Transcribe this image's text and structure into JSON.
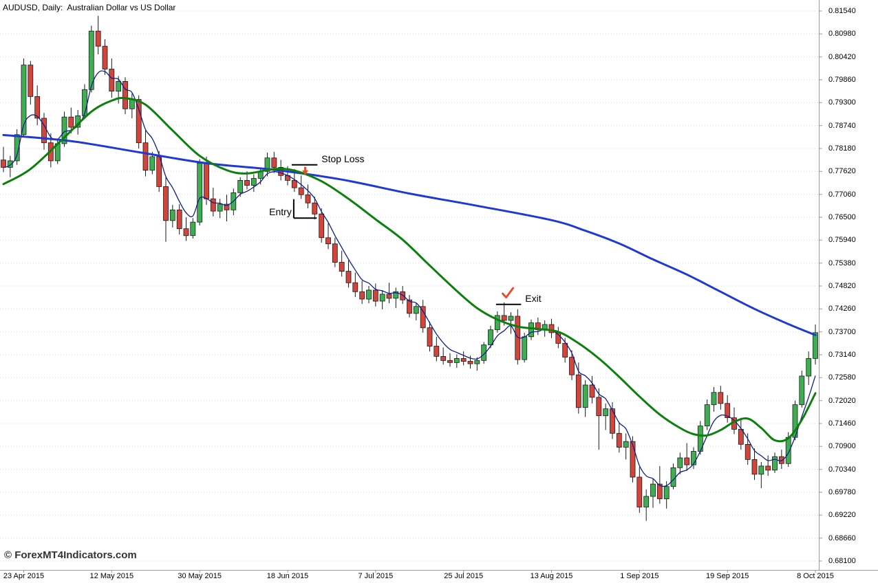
{
  "window": {
    "title": "AUDUSD, Daily:  Australian Dollar vs US Dollar"
  },
  "watermark_text": "© ForexMT4Indicators.com",
  "chart_data": {
    "type": "candlestick",
    "symbol": "AUDUSD",
    "timeframe": "Daily",
    "description": "Australian Dollar vs US Dollar",
    "colors": {
      "background": "#ffffff",
      "grid": "#d6d6d6",
      "up_candle": "#3fae53",
      "down_candle": "#d1453c",
      "candle_outline": "#1a1a1a",
      "slow_ma": "#1f39d4",
      "medium_ma": "#0b800b",
      "fast_ma": "#0e1e8e",
      "annotation_line": "#000000",
      "marker": "#e2512e",
      "axis_line": "#9a9a9a",
      "axis_text": "#000000"
    },
    "y_axis": {
      "min": 0.681,
      "max": 0.8154,
      "tick_step": 0.0056,
      "labels": [
        "0.81540",
        "0.80980",
        "0.80420",
        "0.79860",
        "0.79300",
        "0.78740",
        "0.78180",
        "0.77620",
        "0.77060",
        "0.76500",
        "0.75940",
        "0.75380",
        "0.74820",
        "0.74260",
        "0.73700",
        "0.73140",
        "0.72580",
        "0.72020",
        "0.71460",
        "0.70900",
        "0.70340",
        "0.69780",
        "0.69220",
        "0.68660",
        "0.68100"
      ]
    },
    "x_axis": {
      "tick_indices": [
        3,
        16,
        29,
        42,
        55,
        68,
        81,
        94,
        107,
        120
      ],
      "labels": [
        "23 Apr 2015",
        "12 May 2015",
        "30 May 2015",
        "18 Jun 2015",
        "7 Jul 2015",
        "25 Jul 2015",
        "13 Aug 2015",
        "1 Sep 2015",
        "19 Sep 2015",
        "8 Oct 2015"
      ]
    },
    "candles": [
      [
        0.779,
        0.7822,
        0.776,
        0.7772
      ],
      [
        0.7772,
        0.78,
        0.7748,
        0.7788
      ],
      [
        0.7788,
        0.7865,
        0.7778,
        0.7852
      ],
      [
        0.7852,
        0.8038,
        0.7845,
        0.8022
      ],
      [
        0.8022,
        0.8032,
        0.7925,
        0.7945
      ],
      [
        0.7945,
        0.7972,
        0.7875,
        0.7892
      ],
      [
        0.7892,
        0.7905,
        0.7815,
        0.7832
      ],
      [
        0.7832,
        0.7855,
        0.7772,
        0.7788
      ],
      [
        0.7788,
        0.7842,
        0.778,
        0.783
      ],
      [
        0.783,
        0.7908,
        0.7822,
        0.7895
      ],
      [
        0.7895,
        0.7918,
        0.7855,
        0.787
      ],
      [
        0.787,
        0.7912,
        0.7852,
        0.7898
      ],
      [
        0.7898,
        0.7975,
        0.789,
        0.7962
      ],
      [
        0.7962,
        0.8118,
        0.7955,
        0.8105
      ],
      [
        0.8105,
        0.8142,
        0.8048,
        0.8068
      ],
      [
        0.8068,
        0.8085,
        0.7998,
        0.8012
      ],
      [
        0.8012,
        0.8038,
        0.7942,
        0.7958
      ],
      [
        0.7958,
        0.7995,
        0.7928,
        0.7982
      ],
      [
        0.7982,
        0.7992,
        0.7902,
        0.7915
      ],
      [
        0.7915,
        0.7952,
        0.7892,
        0.7938
      ],
      [
        0.7938,
        0.7948,
        0.7818,
        0.7832
      ],
      [
        0.7832,
        0.7862,
        0.775,
        0.7765
      ],
      [
        0.7765,
        0.781,
        0.7755,
        0.7798
      ],
      [
        0.7798,
        0.7812,
        0.7712,
        0.7725
      ],
      [
        0.7725,
        0.7748,
        0.759,
        0.7642
      ],
      [
        0.7642,
        0.768,
        0.7625,
        0.7668
      ],
      [
        0.7668,
        0.7682,
        0.7608,
        0.7622
      ],
      [
        0.7622,
        0.765,
        0.7592,
        0.7605
      ],
      [
        0.7605,
        0.7648,
        0.7598,
        0.7638
      ],
      [
        0.7638,
        0.7792,
        0.763,
        0.7782
      ],
      [
        0.7782,
        0.7798,
        0.768,
        0.7695
      ],
      [
        0.7695,
        0.7722,
        0.7652,
        0.7665
      ],
      [
        0.7665,
        0.7695,
        0.7648,
        0.7682
      ],
      [
        0.7682,
        0.7705,
        0.764,
        0.7668
      ],
      [
        0.7668,
        0.772,
        0.7655,
        0.771
      ],
      [
        0.771,
        0.7748,
        0.77,
        0.774
      ],
      [
        0.774,
        0.7762,
        0.7718,
        0.7728
      ],
      [
        0.7728,
        0.7755,
        0.7712,
        0.7745
      ],
      [
        0.7745,
        0.7772,
        0.773,
        0.7762
      ],
      [
        0.7762,
        0.7808,
        0.775,
        0.7795
      ],
      [
        0.7795,
        0.781,
        0.7758,
        0.7772
      ],
      [
        0.7772,
        0.779,
        0.774,
        0.7752
      ],
      [
        0.7752,
        0.7775,
        0.7728,
        0.774
      ],
      [
        0.774,
        0.7768,
        0.7712,
        0.7722
      ],
      [
        0.7722,
        0.7752,
        0.7695,
        0.7705
      ],
      [
        0.7705,
        0.773,
        0.7672,
        0.7685
      ],
      [
        0.7685,
        0.77,
        0.7645,
        0.7658
      ],
      [
        0.7658,
        0.7672,
        0.7588,
        0.76
      ],
      [
        0.76,
        0.7635,
        0.7572,
        0.7585
      ],
      [
        0.7585,
        0.76,
        0.7528,
        0.754
      ],
      [
        0.754,
        0.7568,
        0.7505,
        0.7518
      ],
      [
        0.7518,
        0.7545,
        0.7478,
        0.749
      ],
      [
        0.749,
        0.7515,
        0.7455,
        0.7468
      ],
      [
        0.7468,
        0.7495,
        0.7438,
        0.745
      ],
      [
        0.745,
        0.7482,
        0.744,
        0.7472
      ],
      [
        0.7472,
        0.7488,
        0.7432,
        0.7445
      ],
      [
        0.7445,
        0.7472,
        0.7425,
        0.7462
      ],
      [
        0.7462,
        0.749,
        0.744,
        0.7452
      ],
      [
        0.7452,
        0.7478,
        0.7428,
        0.7468
      ],
      [
        0.7468,
        0.7482,
        0.7438,
        0.7448
      ],
      [
        0.7448,
        0.746,
        0.7405,
        0.7415
      ],
      [
        0.7415,
        0.7442,
        0.7398,
        0.7432
      ],
      [
        0.7432,
        0.7448,
        0.7368,
        0.738
      ],
      [
        0.738,
        0.7395,
        0.7322,
        0.7335
      ],
      [
        0.7335,
        0.7358,
        0.7298,
        0.731
      ],
      [
        0.731,
        0.7332,
        0.729,
        0.73
      ],
      [
        0.73,
        0.7318,
        0.7285,
        0.7295
      ],
      [
        0.7295,
        0.7315,
        0.7282,
        0.7305
      ],
      [
        0.7305,
        0.7322,
        0.7288,
        0.7298
      ],
      [
        0.7298,
        0.7312,
        0.728,
        0.7292
      ],
      [
        0.7292,
        0.7308,
        0.7275,
        0.73
      ],
      [
        0.73,
        0.7345,
        0.7292,
        0.7338
      ],
      [
        0.7338,
        0.7385,
        0.733,
        0.7375
      ],
      [
        0.7375,
        0.742,
        0.7368,
        0.741
      ],
      [
        0.741,
        0.7442,
        0.7385,
        0.7398
      ],
      [
        0.7398,
        0.7418,
        0.7365,
        0.7408
      ],
      [
        0.7408,
        0.7425,
        0.729,
        0.7302
      ],
      [
        0.7302,
        0.7368,
        0.7295,
        0.7358
      ],
      [
        0.7358,
        0.74,
        0.735,
        0.7392
      ],
      [
        0.7392,
        0.7405,
        0.7362,
        0.7375
      ],
      [
        0.7375,
        0.7398,
        0.7358,
        0.7388
      ],
      [
        0.7388,
        0.7402,
        0.7355,
        0.7368
      ],
      [
        0.7368,
        0.7382,
        0.733,
        0.7342
      ],
      [
        0.7342,
        0.7355,
        0.7295,
        0.7308
      ],
      [
        0.7308,
        0.7325,
        0.7252,
        0.7265
      ],
      [
        0.7265,
        0.7295,
        0.717,
        0.7185
      ],
      [
        0.7185,
        0.7252,
        0.7162,
        0.724
      ],
      [
        0.724,
        0.7262,
        0.7195,
        0.721
      ],
      [
        0.721,
        0.7232,
        0.7082,
        0.7165
      ],
      [
        0.7165,
        0.7195,
        0.713,
        0.7182
      ],
      [
        0.7182,
        0.7198,
        0.7108,
        0.7122
      ],
      [
        0.7122,
        0.7148,
        0.7075,
        0.7088
      ],
      [
        0.7088,
        0.7122,
        0.7058,
        0.7102
      ],
      [
        0.7102,
        0.7115,
        0.7002,
        0.7015
      ],
      [
        0.7015,
        0.704,
        0.6928,
        0.6942
      ],
      [
        0.6942,
        0.6985,
        0.6908,
        0.6968
      ],
      [
        0.6968,
        0.701,
        0.694,
        0.6998
      ],
      [
        0.6998,
        0.7042,
        0.695,
        0.6962
      ],
      [
        0.6962,
        0.7005,
        0.6938,
        0.6992
      ],
      [
        0.6992,
        0.7048,
        0.6985,
        0.7038
      ],
      [
        0.7038,
        0.7075,
        0.7022,
        0.7062
      ],
      [
        0.7062,
        0.7098,
        0.703,
        0.7045
      ],
      [
        0.7045,
        0.7088,
        0.7035,
        0.7078
      ],
      [
        0.7078,
        0.7152,
        0.707,
        0.714
      ],
      [
        0.714,
        0.7205,
        0.713,
        0.7192
      ],
      [
        0.7192,
        0.7235,
        0.7175,
        0.7222
      ],
      [
        0.7222,
        0.7238,
        0.718,
        0.7195
      ],
      [
        0.7195,
        0.7215,
        0.7148,
        0.716
      ],
      [
        0.716,
        0.7185,
        0.712,
        0.7132
      ],
      [
        0.7132,
        0.716,
        0.7082,
        0.7095
      ],
      [
        0.7095,
        0.7122,
        0.7045,
        0.7058
      ],
      [
        0.7058,
        0.7085,
        0.7008,
        0.7022
      ],
      [
        0.7022,
        0.7052,
        0.6988,
        0.7042
      ],
      [
        0.7042,
        0.7068,
        0.7018,
        0.7032
      ],
      [
        0.7032,
        0.7075,
        0.7025,
        0.7065
      ],
      [
        0.7065,
        0.7082,
        0.7035,
        0.7048
      ],
      [
        0.7048,
        0.7125,
        0.704,
        0.7112
      ],
      [
        0.7112,
        0.7202,
        0.7105,
        0.7192
      ],
      [
        0.7192,
        0.7275,
        0.7185,
        0.7262
      ],
      [
        0.7262,
        0.7322,
        0.724,
        0.7305
      ],
      [
        0.7305,
        0.7388,
        0.729,
        0.7368
      ]
    ],
    "overlays": {
      "slow_ma": {
        "name": "slow-moving-average",
        "points": [
          [
            0,
            0.7851
          ],
          [
            10,
            0.7836
          ],
          [
            20,
            0.7809
          ],
          [
            30,
            0.7782
          ],
          [
            40,
            0.7766
          ],
          [
            50,
            0.7742
          ],
          [
            60,
            0.7708
          ],
          [
            70,
            0.7678
          ],
          [
            81,
            0.7643
          ],
          [
            86,
            0.7617
          ],
          [
            91,
            0.7586
          ],
          [
            96,
            0.7547
          ],
          [
            101,
            0.751
          ],
          [
            106,
            0.7468
          ],
          [
            111,
            0.7426
          ],
          [
            116,
            0.7389
          ],
          [
            120,
            0.7362
          ]
        ]
      },
      "medium_ma": {
        "name": "medium-moving-average",
        "points": [
          [
            0,
            0.7731
          ],
          [
            4,
            0.7768
          ],
          [
            9,
            0.7845
          ],
          [
            13,
            0.7908
          ],
          [
            16,
            0.7935
          ],
          [
            18,
            0.7941
          ],
          [
            21,
            0.7925
          ],
          [
            25,
            0.7862
          ],
          [
            29,
            0.78
          ],
          [
            33,
            0.7765
          ],
          [
            36,
            0.7757
          ],
          [
            40,
            0.7768
          ],
          [
            43,
            0.7764
          ],
          [
            47,
            0.7738
          ],
          [
            51,
            0.7695
          ],
          [
            55,
            0.7645
          ],
          [
            59,
            0.7595
          ],
          [
            63,
            0.7532
          ],
          [
            67,
            0.747
          ],
          [
            70,
            0.7428
          ],
          [
            73,
            0.74
          ],
          [
            76,
            0.7383
          ],
          [
            79,
            0.7377
          ],
          [
            82,
            0.737
          ],
          [
            85,
            0.7342
          ],
          [
            88,
            0.7305
          ],
          [
            91,
            0.726
          ],
          [
            94,
            0.7212
          ],
          [
            97,
            0.7168
          ],
          [
            100,
            0.7135
          ],
          [
            102,
            0.712
          ],
          [
            104,
            0.7117
          ],
          [
            106,
            0.713
          ],
          [
            108,
            0.715
          ],
          [
            110,
            0.7158
          ],
          [
            112,
            0.7135
          ],
          [
            114,
            0.7105
          ],
          [
            116,
            0.711
          ],
          [
            118,
            0.7155
          ],
          [
            120,
            0.722
          ]
        ]
      },
      "fast_ma": {
        "name": "fast-moving-average",
        "derive": "ema",
        "period": 5
      }
    },
    "annotations": [
      {
        "label": "Stop Loss",
        "type": "hline",
        "price": 0.7778,
        "i_start": 42.6,
        "i_end": 46.4,
        "label_anchor": "right",
        "marker": "arrow-down",
        "marker_i": 44.6,
        "marker_price": 0.7758
      },
      {
        "label": "Entry",
        "type": "bracket",
        "price": 0.7648,
        "i_start": 42.9,
        "i_end": 46.3,
        "label_anchor": "left",
        "bracket_top_price": 0.7694
      },
      {
        "label": "Exit",
        "type": "hline",
        "price": 0.7437,
        "i_start": 72.8,
        "i_end": 76.5,
        "label_anchor": "right",
        "marker": "check",
        "marker_i": 74.5,
        "marker_price": 0.7465
      }
    ]
  }
}
